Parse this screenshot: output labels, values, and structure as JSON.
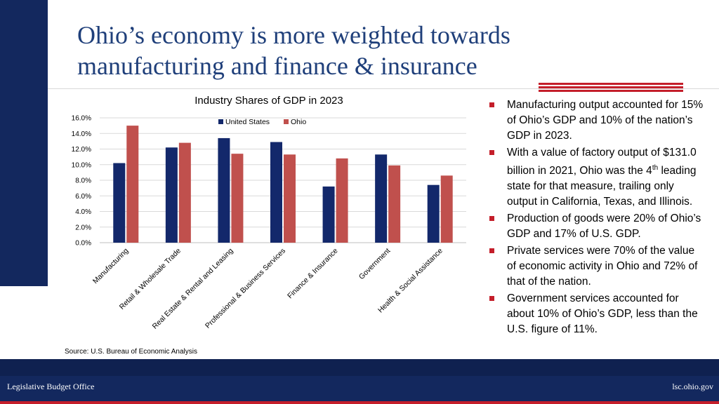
{
  "title": "Ohio’s economy is more weighted towards manufacturing and finance & insurance",
  "chart_data": {
    "type": "bar",
    "title": "Industry Shares of GDP in 2023",
    "categories": [
      "Manufacturing",
      "Retail & Wholesale Trade",
      "Real Estate & Rental and Leasing",
      "Professional & Business Services",
      "Finance & Insurance",
      "Government",
      "Health & Social Assistance"
    ],
    "series": [
      {
        "name": "United States",
        "color": "#13286b",
        "values": [
          10.2,
          12.2,
          13.4,
          12.9,
          7.2,
          11.3,
          7.4
        ]
      },
      {
        "name": "Ohio",
        "color": "#c0504d",
        "values": [
          15.0,
          12.8,
          11.4,
          11.3,
          10.8,
          9.9,
          8.6
        ]
      }
    ],
    "ylim": [
      0,
      16
    ],
    "yticks": [
      "0.0%",
      "2.0%",
      "4.0%",
      "6.0%",
      "8.0%",
      "10.0%",
      "12.0%",
      "14.0%",
      "16.0%"
    ],
    "grid": true,
    "legend": "top"
  },
  "source": "Source: U.S. Bureau of Economic Analysis",
  "bullets": [
    "Manufacturing output accounted for 15% of Ohio’s GDP and 10% of the nation’s GDP in 2023.",
    "Production of goods were 20% of Ohio’s GDP and 17% of U.S. GDP.",
    "Private services were 70% of the value of economic activity in Ohio and 72% of that of the nation.",
    "Government services accounted for about 10% of Ohio’s GDP, less than the U.S. figure of 11%."
  ],
  "factory_bullet": {
    "before": "With a value of factory output of $131.0 billion in 2021, Ohio was the 4",
    "sup": "th",
    "after": " leading state for that measure, trailing only output in California, Texas, and Illinois."
  },
  "footer": {
    "left": "Legislative Budget Office",
    "right": "lsc.ohio.gov"
  },
  "colors": {
    "navy": "#13285e",
    "red": "#c41e2a"
  }
}
